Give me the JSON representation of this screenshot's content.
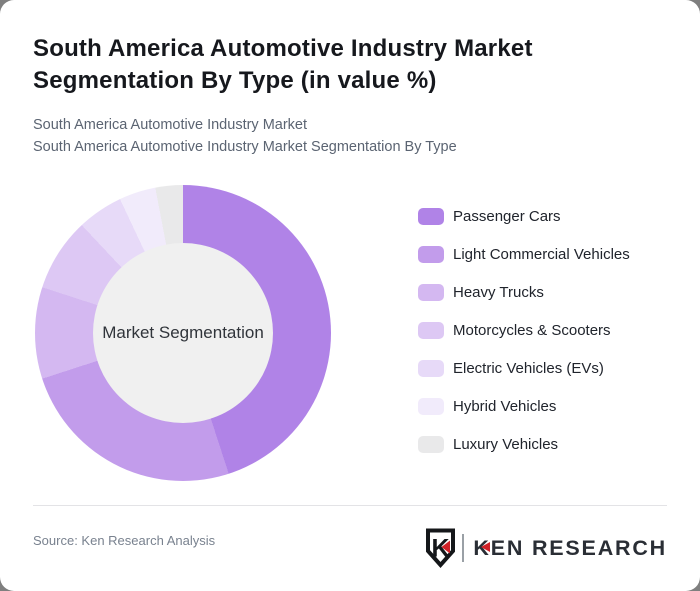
{
  "card": {
    "title": "South America Automotive Industry Market Segmentation By Type (in value %)",
    "subtitle_line1": "South America Automotive Industry Market",
    "subtitle_line2": "South America Automotive Industry Market Segmentation By Type"
  },
  "chart_data": {
    "type": "pie",
    "style": "donut",
    "title": "South America Automotive Industry Market Segmentation By Type (in value %)",
    "center_label": "Market Segmentation",
    "categories": [
      "Passenger Cars",
      "Light Commercial Vehicles",
      "Heavy Trucks",
      "Motorcycles & Scooters",
      "Electric Vehicles (EVs)",
      "Hybrid Vehicles",
      "Luxury Vehicles"
    ],
    "values": [
      45,
      25,
      10,
      8,
      5,
      4,
      3
    ],
    "unit": "percent of value",
    "colors": [
      "#b083e7",
      "#c29ceb",
      "#d4b8f1",
      "#ddc8f4",
      "#e7daf8",
      "#f1ebfb",
      "#e9e9ea"
    ],
    "start_angle_deg": 0,
    "direction": "clockwise",
    "legend_position": "right",
    "inner_circle_color": "#f0f0f0"
  },
  "footer": {
    "source": "Source: Ken Research Analysis",
    "logo": {
      "badge_letter": "K",
      "wordmark": "KEN RESEARCH",
      "accent_color": "#cf2127"
    }
  }
}
